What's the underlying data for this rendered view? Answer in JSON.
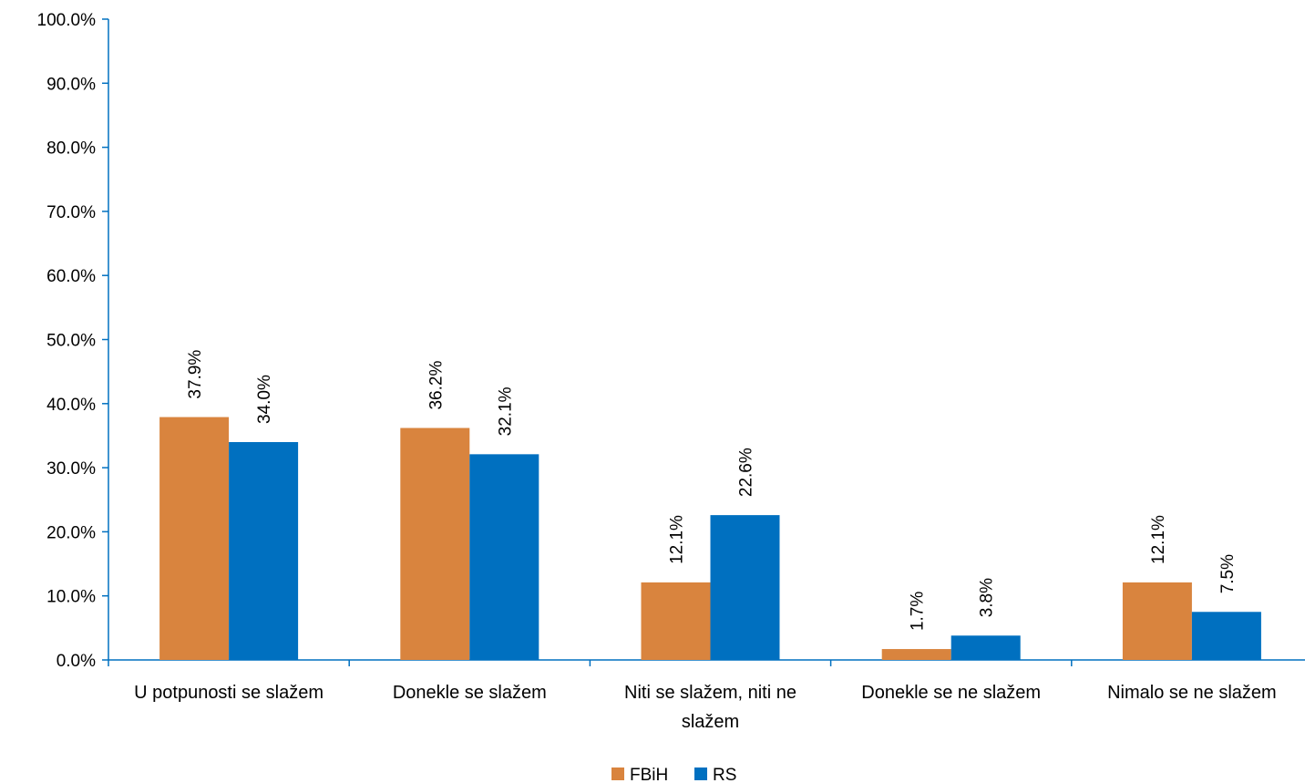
{
  "chart_data": {
    "type": "bar",
    "categories": [
      [
        "U potpunosti se slažem"
      ],
      [
        "Donekle se slažem"
      ],
      [
        "Niti se slažem, niti ne",
        "slažem"
      ],
      [
        "Donekle se ne slažem"
      ],
      [
        "Nimalo se ne slažem"
      ]
    ],
    "series": [
      {
        "name": "FBiH",
        "color": "#D9843E",
        "values": [
          37.9,
          36.2,
          12.1,
          1.7,
          12.1
        ],
        "labels": [
          "37.9%",
          "36.2%",
          "12.1%",
          "1.7%",
          "12.1%"
        ]
      },
      {
        "name": "RS",
        "color": "#0070C0",
        "values": [
          34.0,
          32.1,
          22.6,
          3.8,
          7.5
        ],
        "labels": [
          "34.0%",
          "32.1%",
          "22.6%",
          "3.8%",
          "7.5%"
        ]
      }
    ],
    "ylim": [
      0,
      100
    ],
    "yticks": [
      {
        "value": 0,
        "label": "0.0%"
      },
      {
        "value": 10,
        "label": "10.0%"
      },
      {
        "value": 20,
        "label": "20.0%"
      },
      {
        "value": 30,
        "label": "30.0%"
      },
      {
        "value": 40,
        "label": "40.0%"
      },
      {
        "value": 50,
        "label": "50.0%"
      },
      {
        "value": 60,
        "label": "60.0%"
      },
      {
        "value": 70,
        "label": "70.0%"
      },
      {
        "value": 80,
        "label": "80.0%"
      },
      {
        "value": 90,
        "label": "90.0%"
      },
      {
        "value": 100,
        "label": "100.0%"
      }
    ],
    "grid": false,
    "legend_position": "bottom",
    "axis_color": "#0070C0"
  }
}
